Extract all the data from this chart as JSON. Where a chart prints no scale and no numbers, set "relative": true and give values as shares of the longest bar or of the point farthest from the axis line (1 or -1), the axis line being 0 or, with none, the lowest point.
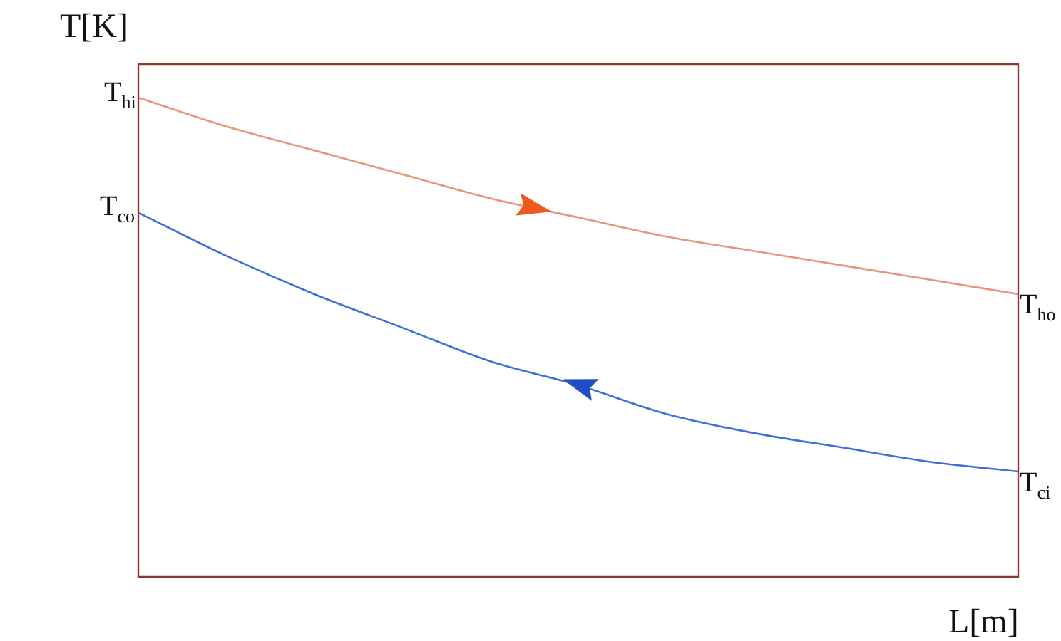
{
  "chart_data": {
    "type": "line",
    "relative": true,
    "xlabel": "L[m]",
    "ylabel": "T[K]",
    "categories": [
      null,
      null,
      null,
      null,
      null,
      null,
      null,
      null,
      null,
      null,
      null
    ],
    "series": [
      {
        "color": "#e8967a",
        "values": [
          1,
          0.94,
          0.89,
          0.84,
          0.79,
          0.75,
          0.71,
          0.68,
          0.65,
          0.62,
          0.59
        ]
      },
      {
        "color": "#3d6fd6",
        "values": [
          0.76,
          0.67,
          0.59,
          0.52,
          0.45,
          0.4,
          0.34,
          0.3,
          0.27,
          0.24,
          0.22
        ]
      }
    ],
    "annotations": [
      "T$_{hi}$",
      "T$_{co}$",
      "T$_{ho}$",
      "T$_{ci}$"
    ],
    "legend": false,
    "marker": "none",
    "line_style": "solid"
  }
}
